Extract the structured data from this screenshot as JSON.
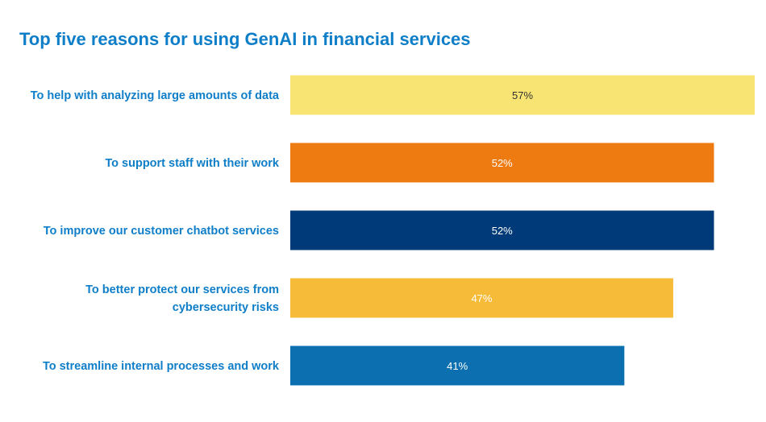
{
  "chart_data": {
    "type": "bar",
    "orientation": "horizontal",
    "title": "Top five reasons for using GenAI in financial services",
    "xlim": [
      0,
      57
    ],
    "grid": false,
    "legend": "none",
    "categories": [
      [
        "To help with analyzing large amounts of data"
      ],
      [
        "To support staff with their work"
      ],
      [
        "To improve our customer chatbot services"
      ],
      [
        "To better protect our services from",
        "cybersecurity risks"
      ],
      [
        "To streamline internal processes and work"
      ]
    ],
    "values": [
      57,
      52,
      52,
      47,
      41
    ],
    "value_labels": [
      "57%",
      "52%",
      "52%",
      "47%",
      "41%"
    ],
    "bar_colors": [
      "#f7e473",
      "#ee7b12",
      "#003a78",
      "#f6bb39",
      "#0b6fb0"
    ],
    "value_label_colors": [
      "#333333",
      "#ffffff",
      "#ffffff",
      "#ffffff",
      "#ffffff"
    ]
  }
}
